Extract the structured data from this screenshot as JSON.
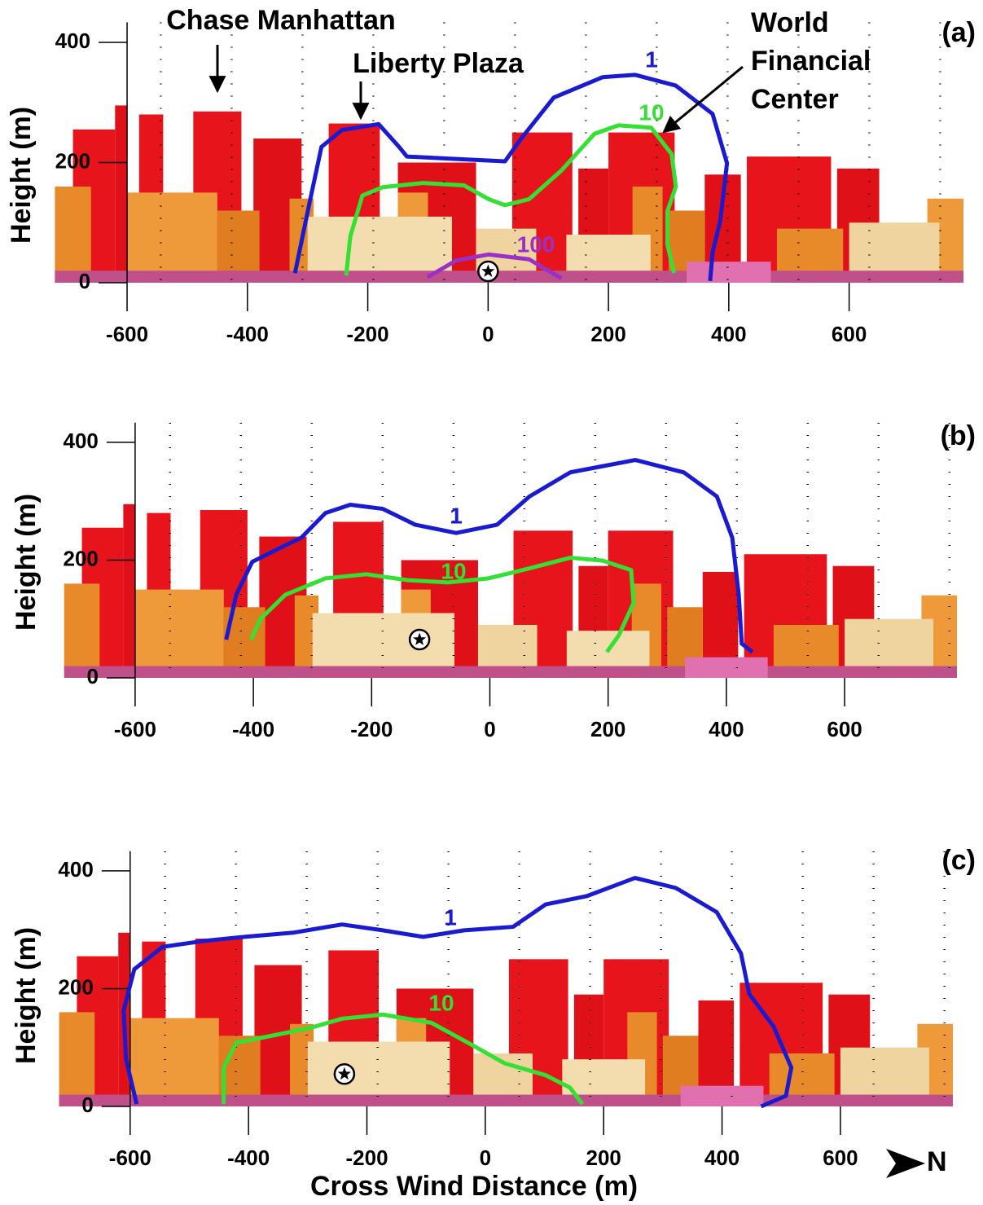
{
  "chart_data": [
    {
      "type": "line",
      "panel_label": "(a)",
      "y_label": "Height (m)",
      "xlim": [
        -720,
        790
      ],
      "ylim": [
        0,
        440
      ],
      "xticks": [
        -600,
        -400,
        -200,
        0,
        200,
        400,
        600
      ],
      "yticks": [
        0,
        200,
        400
      ],
      "annotations": [
        "Chase Manhattan",
        "Liberty Plaza",
        "World",
        "Financial",
        "Center"
      ],
      "source": {
        "x": 0,
        "y": 19
      },
      "series": [
        {
          "name": "1",
          "color": "#1a1ad0",
          "x": [
            -321,
            -297,
            -277,
            -243,
            -182,
            -148,
            -135,
            -53,
            28,
            55,
            109,
            190,
            244,
            312,
            373,
            397,
            386,
            373,
            369
          ],
          "y": [
            16,
            132,
            226,
            254,
            264,
            226,
            210,
            206,
            202,
            240,
            308,
            342,
            346,
            328,
            281,
            199,
            104,
            50,
            3
          ]
        },
        {
          "name": "10",
          "color": "#33e033",
          "x": [
            -236,
            -229,
            -209,
            -175,
            -108,
            -40,
            1,
            28,
            68,
            122,
            177,
            217,
            271,
            305,
            312,
            298,
            298,
            309
          ],
          "y": [
            12,
            77,
            145,
            159,
            166,
            162,
            139,
            129,
            139,
            187,
            248,
            262,
            258,
            214,
            160,
            119,
            64,
            16
          ]
        },
        {
          "name": "100",
          "color": "#9a30c8",
          "x": [
            -101,
            -53,
            1,
            68,
            122
          ],
          "y": [
            9,
            37,
            47,
            39,
            7
          ]
        }
      ]
    },
    {
      "type": "line",
      "panel_label": "(b)",
      "y_label": "Height (m)",
      "xlim": [
        -720,
        790
      ],
      "ylim": [
        0,
        440
      ],
      "xticks": [
        -600,
        -400,
        -200,
        0,
        200,
        400,
        600
      ],
      "yticks": [
        0,
        200,
        400
      ],
      "source": {
        "x": -119,
        "y": 65
      },
      "series": [
        {
          "name": "1",
          "color": "#1a1ad0",
          "x": [
            -446,
            -429,
            -402,
            -360,
            -319,
            -278,
            -236,
            -181,
            -126,
            -57,
            12,
            67,
            136,
            246,
            328,
            384,
            410,
            421,
            426,
            444
          ],
          "y": [
            65,
            141,
            197,
            218,
            238,
            280,
            294,
            287,
            260,
            246,
            260,
            308,
            349,
            370,
            349,
            308,
            238,
            141,
            58,
            44
          ]
        },
        {
          "name": "10",
          "color": "#33e033",
          "x": [
            -404,
            -388,
            -346,
            -278,
            -209,
            -140,
            -71,
            -2,
            67,
            136,
            191,
            239,
            243,
            218,
            198
          ],
          "y": [
            65,
            100,
            141,
            169,
            176,
            166,
            162,
            169,
            186,
            204,
            199,
            183,
            127,
            72,
            44
          ]
        }
      ]
    },
    {
      "type": "line",
      "panel_label": "(c)",
      "y_label": "Height (m)",
      "x_label": "Cross Wind Distance (m)",
      "north_label": "N",
      "xlim": [
        -720,
        790
      ],
      "ylim": [
        0,
        440
      ],
      "xticks": [
        -600,
        -400,
        -200,
        0,
        200,
        400,
        600
      ],
      "yticks": [
        0,
        200,
        400
      ],
      "source": {
        "x": -238,
        "y": 55
      },
      "series": [
        {
          "name": "1",
          "color": "#1a1ad0",
          "x": [
            -589,
            -607,
            -611,
            -593,
            -545,
            -476,
            -407,
            -325,
            -242,
            -173,
            -105,
            -36,
            47,
            102,
            171,
            253,
            322,
            391,
            432,
            446,
            487,
            517,
            508,
            466
          ],
          "y": [
            4,
            80,
            163,
            233,
            271,
            281,
            288,
            295,
            309,
            299,
            288,
            299,
            305,
            343,
            357,
            388,
            371,
            330,
            260,
            191,
            136,
            66,
            18,
            0
          ]
        },
        {
          "name": "10",
          "color": "#33e033",
          "x": [
            -442,
            -442,
            -421,
            -366,
            -297,
            -242,
            -173,
            -91,
            -29,
            33,
            102,
            143,
            164
          ],
          "y": [
            4,
            66,
            108,
            119,
            133,
            149,
            156,
            142,
            108,
            73,
            53,
            32,
            4
          ]
        }
      ]
    }
  ]
}
